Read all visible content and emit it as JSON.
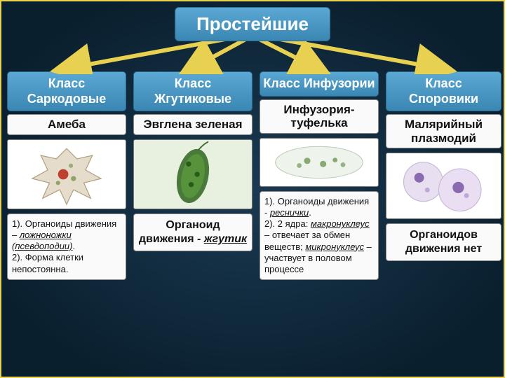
{
  "title": "Простейшие",
  "background": {
    "center": "#1a3a52",
    "edge": "#0a1f2e",
    "border": "#e8d050"
  },
  "box_style": {
    "header_bg_top": "#5ba8d4",
    "header_bg_bottom": "#3b87b3",
    "header_text": "#ffffff",
    "content_bg": "#fafafa",
    "content_text": "#111111",
    "border": "#888888"
  },
  "font": {
    "title_pt": 26,
    "class_pt": 18,
    "species_pt": 17,
    "notes_pt": 13
  },
  "arrow_color": "#e8d050",
  "columns": [
    {
      "class_label": "Класс Саркодовые",
      "species": "Амеба",
      "notes_html": "1). Органоиды движения – <u><i>ложноножки (псевдоподии)</i></u>.<br>2). Форма клетки непостоянна.",
      "image": "amoeba"
    },
    {
      "class_label": "Класс Жгутиковые",
      "species": "Эвглена зеленая",
      "notes_html": "<b>Органоид движения - <u><i>жгутик</i></u></b>",
      "image": "euglena"
    },
    {
      "class_label": "Класс Инфузории",
      "species": "Инфузория-туфелька",
      "notes_html": "1). Органоиды движения - <u><i>реснички</i></u>.<br>2). 2 ядра: <u><i>макронуклеус</i></u> – отвечает за обмен веществ; <u><i>микронуклеус</i></u> – участвует в половом процессе",
      "image": "paramecium"
    },
    {
      "class_label": "Класс Споровики",
      "species": "Малярийный плазмодий",
      "notes_html": "<b>Органоидов движения нет</b>",
      "image": "plasmodium"
    }
  ]
}
